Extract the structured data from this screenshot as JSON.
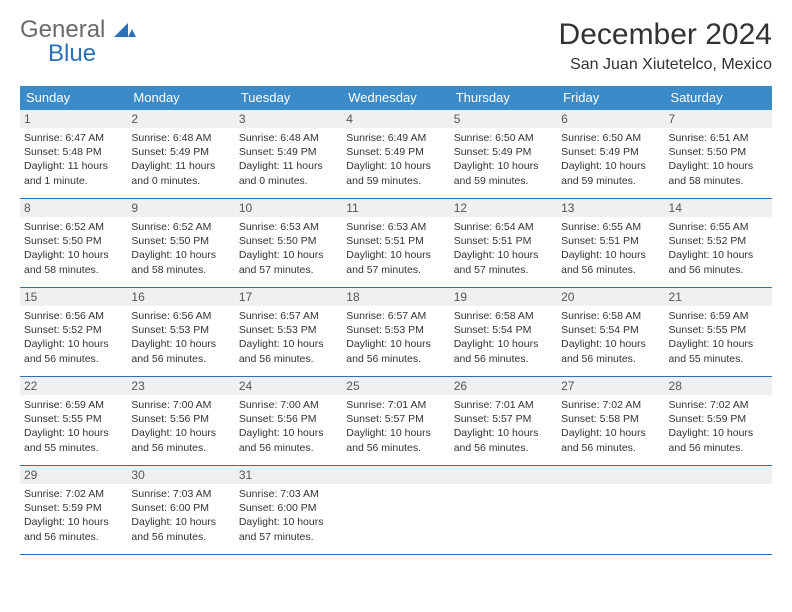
{
  "brand": {
    "text_gray": "General",
    "text_blue": "Blue",
    "mark_color": "#2b71b8"
  },
  "header": {
    "month_title": "December 2024",
    "location": "San Juan Xiutetelco, Mexico"
  },
  "colors": {
    "header_bar": "#3b8bc8",
    "rule": "#2b71b8",
    "daynum_bg": "#eef0f1",
    "text": "#333333"
  },
  "day_names": [
    "Sunday",
    "Monday",
    "Tuesday",
    "Wednesday",
    "Thursday",
    "Friday",
    "Saturday"
  ],
  "weeks": [
    [
      {
        "n": "1",
        "sr": "6:47 AM",
        "ss": "5:48 PM",
        "dl": "11 hours and 1 minute."
      },
      {
        "n": "2",
        "sr": "6:48 AM",
        "ss": "5:49 PM",
        "dl": "11 hours and 0 minutes."
      },
      {
        "n": "3",
        "sr": "6:48 AM",
        "ss": "5:49 PM",
        "dl": "11 hours and 0 minutes."
      },
      {
        "n": "4",
        "sr": "6:49 AM",
        "ss": "5:49 PM",
        "dl": "10 hours and 59 minutes."
      },
      {
        "n": "5",
        "sr": "6:50 AM",
        "ss": "5:49 PM",
        "dl": "10 hours and 59 minutes."
      },
      {
        "n": "6",
        "sr": "6:50 AM",
        "ss": "5:49 PM",
        "dl": "10 hours and 59 minutes."
      },
      {
        "n": "7",
        "sr": "6:51 AM",
        "ss": "5:50 PM",
        "dl": "10 hours and 58 minutes."
      }
    ],
    [
      {
        "n": "8",
        "sr": "6:52 AM",
        "ss": "5:50 PM",
        "dl": "10 hours and 58 minutes."
      },
      {
        "n": "9",
        "sr": "6:52 AM",
        "ss": "5:50 PM",
        "dl": "10 hours and 58 minutes."
      },
      {
        "n": "10",
        "sr": "6:53 AM",
        "ss": "5:50 PM",
        "dl": "10 hours and 57 minutes."
      },
      {
        "n": "11",
        "sr": "6:53 AM",
        "ss": "5:51 PM",
        "dl": "10 hours and 57 minutes."
      },
      {
        "n": "12",
        "sr": "6:54 AM",
        "ss": "5:51 PM",
        "dl": "10 hours and 57 minutes."
      },
      {
        "n": "13",
        "sr": "6:55 AM",
        "ss": "5:51 PM",
        "dl": "10 hours and 56 minutes."
      },
      {
        "n": "14",
        "sr": "6:55 AM",
        "ss": "5:52 PM",
        "dl": "10 hours and 56 minutes."
      }
    ],
    [
      {
        "n": "15",
        "sr": "6:56 AM",
        "ss": "5:52 PM",
        "dl": "10 hours and 56 minutes."
      },
      {
        "n": "16",
        "sr": "6:56 AM",
        "ss": "5:53 PM",
        "dl": "10 hours and 56 minutes."
      },
      {
        "n": "17",
        "sr": "6:57 AM",
        "ss": "5:53 PM",
        "dl": "10 hours and 56 minutes."
      },
      {
        "n": "18",
        "sr": "6:57 AM",
        "ss": "5:53 PM",
        "dl": "10 hours and 56 minutes."
      },
      {
        "n": "19",
        "sr": "6:58 AM",
        "ss": "5:54 PM",
        "dl": "10 hours and 56 minutes."
      },
      {
        "n": "20",
        "sr": "6:58 AM",
        "ss": "5:54 PM",
        "dl": "10 hours and 56 minutes."
      },
      {
        "n": "21",
        "sr": "6:59 AM",
        "ss": "5:55 PM",
        "dl": "10 hours and 55 minutes."
      }
    ],
    [
      {
        "n": "22",
        "sr": "6:59 AM",
        "ss": "5:55 PM",
        "dl": "10 hours and 55 minutes."
      },
      {
        "n": "23",
        "sr": "7:00 AM",
        "ss": "5:56 PM",
        "dl": "10 hours and 56 minutes."
      },
      {
        "n": "24",
        "sr": "7:00 AM",
        "ss": "5:56 PM",
        "dl": "10 hours and 56 minutes."
      },
      {
        "n": "25",
        "sr": "7:01 AM",
        "ss": "5:57 PM",
        "dl": "10 hours and 56 minutes."
      },
      {
        "n": "26",
        "sr": "7:01 AM",
        "ss": "5:57 PM",
        "dl": "10 hours and 56 minutes."
      },
      {
        "n": "27",
        "sr": "7:02 AM",
        "ss": "5:58 PM",
        "dl": "10 hours and 56 minutes."
      },
      {
        "n": "28",
        "sr": "7:02 AM",
        "ss": "5:59 PM",
        "dl": "10 hours and 56 minutes."
      }
    ],
    [
      {
        "n": "29",
        "sr": "7:02 AM",
        "ss": "5:59 PM",
        "dl": "10 hours and 56 minutes."
      },
      {
        "n": "30",
        "sr": "7:03 AM",
        "ss": "6:00 PM",
        "dl": "10 hours and 56 minutes."
      },
      {
        "n": "31",
        "sr": "7:03 AM",
        "ss": "6:00 PM",
        "dl": "10 hours and 57 minutes."
      },
      null,
      null,
      null,
      null
    ]
  ],
  "labels": {
    "sunrise": "Sunrise: ",
    "sunset": "Sunset: ",
    "daylight": "Daylight: "
  }
}
